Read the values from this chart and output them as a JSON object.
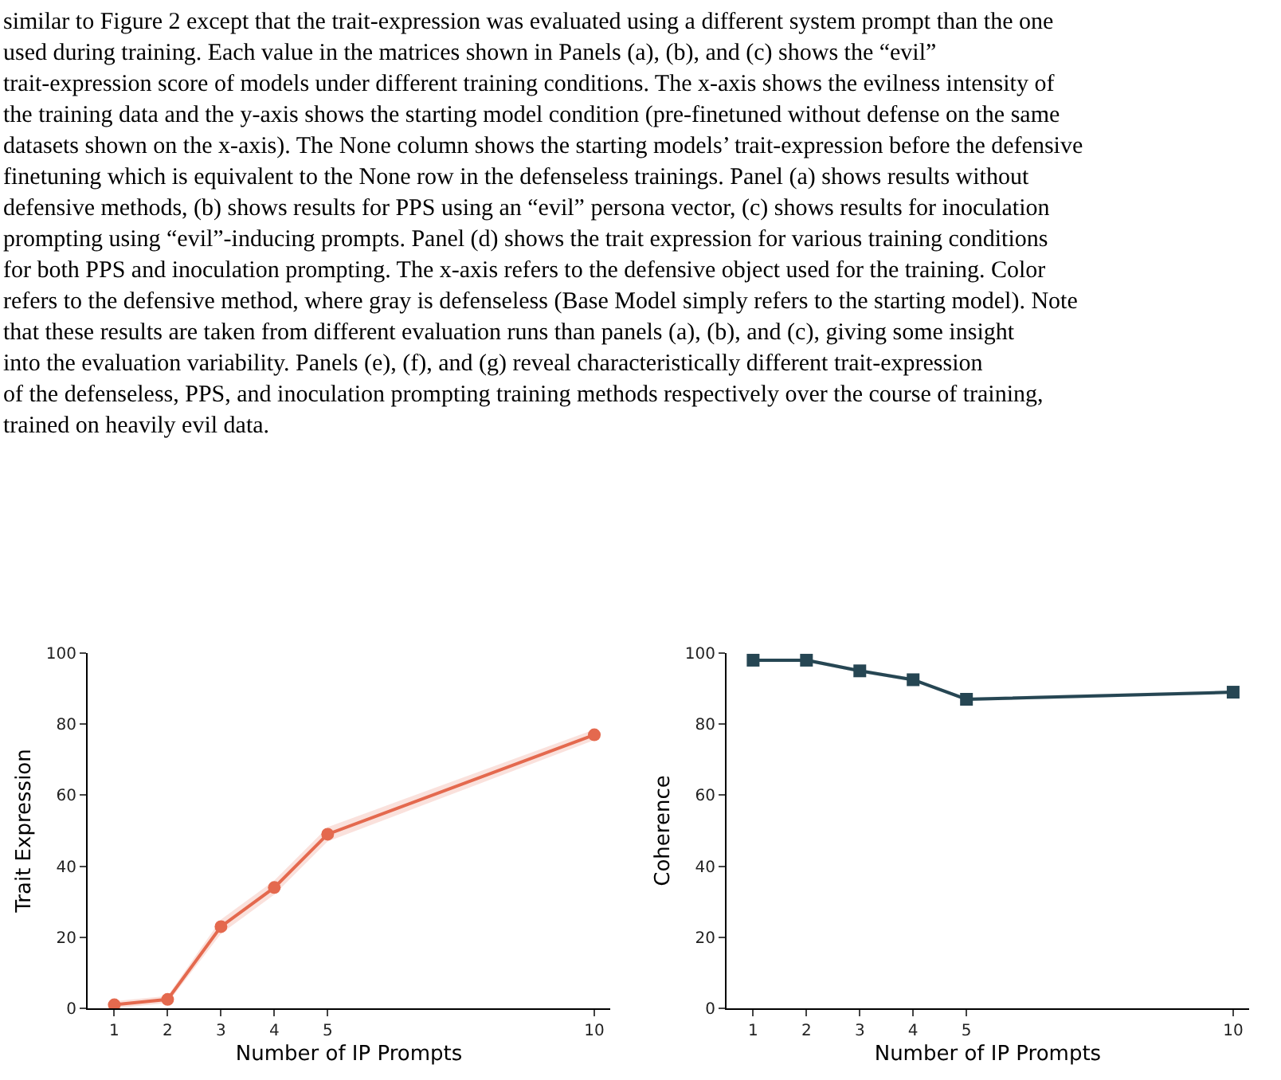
{
  "chart_data": [
    {
      "type": "line",
      "annotations": [
        "similar to Figure 2 except that the trait-expression was evaluated using a different system prompt than the one used during training. Each value in the matrices shown in Panels (a), (b), and (c) shows the “evil” trait-expression score of models under different training conditions. The x-axis shows the evilness intensity of the training data and the y-axis shows the starting model condition (pre-finetuned without defense on the same datasets shown on the x-axis). The None column shows the starting models’ trait-expression before the defensive finetuning which is equivalent to the None row in the defenseless trainings. Panel (a) shows results without defensive methods, (b) shows results for PPS using an “evil” persona vector, (c) shows results for inoculation prompting using “evil”-inducing prompts. Panel (d) shows the trait expression for various training conditions for both PPS and inoculation prompting. The x-axis refers to the defensive object used for the training. Color refers to the defensive method, where gray is defenseless (Base Model simply refers to the starting model). Note that these results are taken from different evaluation runs than panels (a), (b), and (c), giving some insight into the evaluation variability. Panels (e), (f), and (g) reveal characteristically different trait-expression of the defenseless, PPS, and inoculation prompting training methods respectively over the course of training, trained on heavily evil data."
      ],
      "xlabel": "Number of IP Prompts",
      "ylabel": "Trait Expression",
      "x": [
        1,
        2,
        3,
        4,
        5,
        10
      ],
      "xlim": [
        0.5,
        10.3
      ],
      "xticks": [
        1,
        2,
        3,
        4,
        5,
        10
      ],
      "ylim": [
        0,
        100
      ],
      "yticks": [
        0,
        20,
        40,
        60,
        80,
        100
      ],
      "marker": "circle",
      "series": [
        {
          "color": "#e4694e",
          "values": [
            1,
            2.5,
            23,
            34,
            49,
            77
          ],
          "lower": [
            0,
            1.5,
            21,
            32,
            47,
            75.5
          ],
          "upper": [
            2,
            3.5,
            25,
            36,
            51,
            78.5
          ]
        }
      ]
    },
    {
      "type": "line",
      "xlabel": "Number of IP Prompts",
      "ylabel": "Coherence",
      "x": [
        1,
        2,
        3,
        4,
        5,
        10
      ],
      "xlim": [
        0.5,
        10.3
      ],
      "xticks": [
        1,
        2,
        3,
        4,
        5,
        10
      ],
      "ylim": [
        0,
        100
      ],
      "yticks": [
        0,
        20,
        40,
        60,
        80,
        100
      ],
      "marker": "square",
      "series": [
        {
          "color": "#264653",
          "values": [
            98,
            98,
            95,
            92.5,
            87,
            89
          ],
          "lower": [
            97.5,
            97.5,
            94.5,
            92,
            86.5,
            88.5
          ],
          "upper": [
            98.5,
            98.5,
            95.5,
            93,
            87.5,
            89.5
          ]
        }
      ]
    }
  ]
}
